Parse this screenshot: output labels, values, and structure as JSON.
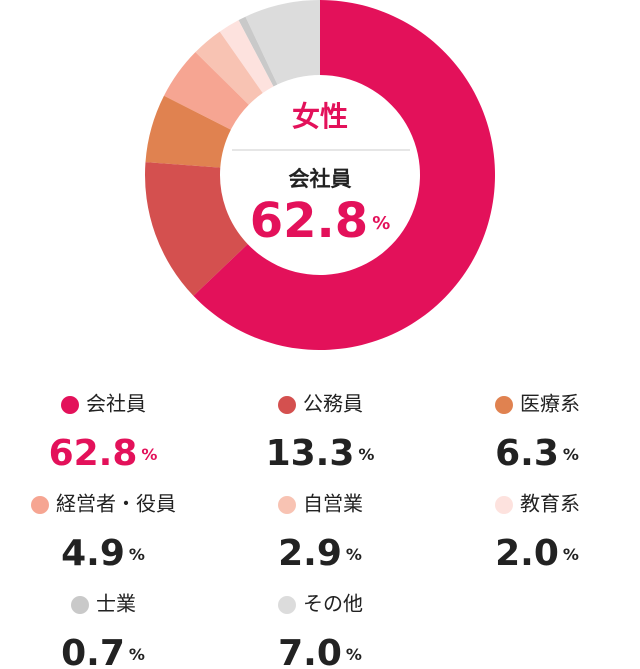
{
  "chart_data": {
    "type": "donut",
    "title": "女性",
    "categories": [
      "会社員",
      "公務員",
      "医療系",
      "経営者・役員",
      "自営業",
      "教育系",
      "士業",
      "その他"
    ],
    "values": [
      62.8,
      13.3,
      6.3,
      4.9,
      2.9,
      2.0,
      0.7,
      7.0
    ],
    "value_labels": [
      "62.8%",
      "13.3%",
      "6.3%",
      "4.9%",
      "2.9%",
      "2.0%",
      "0.7%",
      "7.0%"
    ],
    "colors": [
      "#e3115a",
      "#d4504f",
      "#e08250",
      "#f6a592",
      "#f8c3b3",
      "#fde2de",
      "#c9c9c9",
      "#dcdcdc"
    ]
  }
}
